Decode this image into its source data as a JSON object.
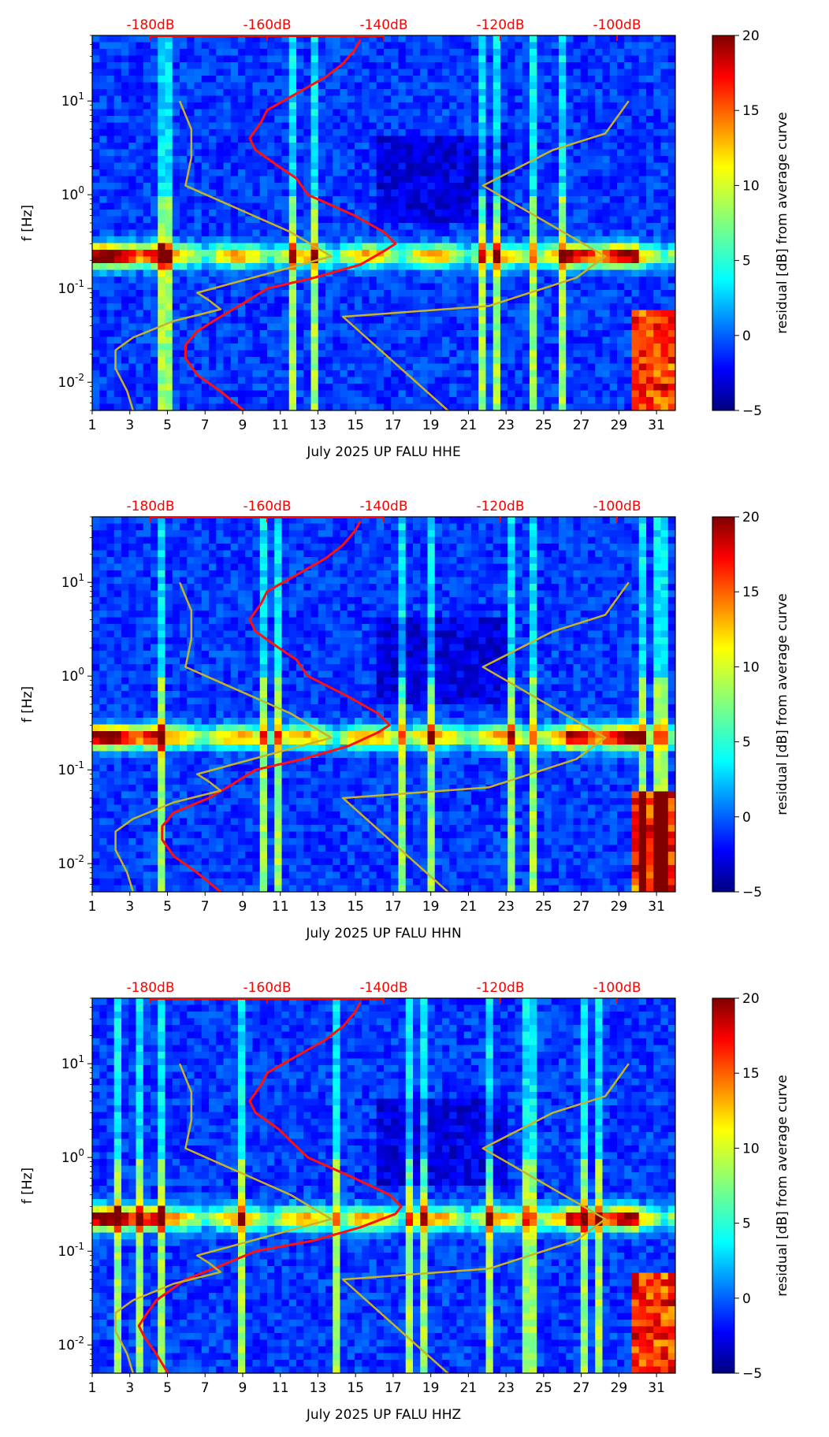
{
  "colors": {
    "noise_curve": "#ff1010",
    "model_curve": "#c8b228",
    "db_axis": "#ff0000",
    "colormap": [
      "#00007f",
      "#0000ff",
      "#007fff",
      "#00ffff",
      "#7fff7f",
      "#ffff00",
      "#ff7f00",
      "#ff0000",
      "#7f0000"
    ]
  },
  "chart_data": [
    {
      "type": "heatmap",
      "title": "",
      "xlabel": "July 2025 UP FALU  HHE",
      "ylabel": "f [Hz]",
      "x_ticks": [
        "1",
        "3",
        "5",
        "7",
        "9",
        "11",
        "13",
        "15",
        "17",
        "19",
        "21",
        "23",
        "25",
        "27",
        "29",
        "31"
      ],
      "x_range": [
        1,
        32
      ],
      "y_scale": "log",
      "y_range": [
        0.005,
        50
      ],
      "y_ticks": [
        "10^-2",
        "10^-1",
        "10^0",
        "10^1"
      ],
      "top_axis": {
        "ticks": [
          "-180dB",
          "-160dB",
          "-140dB",
          "-120dB",
          "-100dB"
        ],
        "values": [
          -180,
          -160,
          -140,
          -120,
          -100
        ],
        "range": [
          -190,
          -90
        ]
      },
      "colorbar": {
        "label": "residual [dB] from average curve",
        "range": [
          -5,
          20
        ],
        "ticks": [
          "−5",
          "0",
          "5",
          "10",
          "15",
          "20"
        ]
      },
      "series": [
        {
          "name": "red noise curve (dB)",
          "freq": [
            0.005,
            0.008,
            0.012,
            0.018,
            0.025,
            0.035,
            0.05,
            0.07,
            0.1,
            0.13,
            0.18,
            0.25,
            0.3,
            0.4,
            0.6,
            1,
            1.5,
            2,
            3,
            4,
            6,
            8,
            12,
            18,
            25,
            35,
            45
          ],
          "db": [
            -164,
            -168,
            -172,
            -174,
            -174,
            -172,
            -168,
            -164,
            -160,
            -152,
            -144,
            -140,
            -138,
            -140,
            -145,
            -153,
            -155,
            -158,
            -162,
            -163,
            -161,
            -160,
            -155,
            -150,
            -147,
            -145,
            -144
          ]
        },
        {
          "name": "model curve (dB)",
          "freq": [
            0.005,
            0.008,
            0.014,
            0.022,
            0.03,
            0.045,
            0.06,
            0.075,
            0.09,
            0.22,
            0.4,
            1.25,
            2.5,
            5,
            10
          ],
          "db": [
            -183,
            -184,
            -186,
            -186,
            -183,
            -176,
            -168,
            -170,
            -172,
            -149,
            -156,
            -174,
            -173,
            -173,
            -175
          ]
        },
        {
          "name": "model curve upper (dB)",
          "freq": [
            0.005,
            0.05,
            0.065,
            0.13,
            0.22,
            1.25,
            3,
            4.5,
            10
          ],
          "db": [
            -129,
            -147,
            -122,
            -107,
            -102,
            -123,
            -111,
            -102,
            -98
          ]
        }
      ]
    },
    {
      "type": "heatmap",
      "title": "",
      "xlabel": "July 2025 UP FALU  HHN",
      "ylabel": "f [Hz]",
      "x_ticks": [
        "1",
        "3",
        "5",
        "7",
        "9",
        "11",
        "13",
        "15",
        "17",
        "19",
        "21",
        "23",
        "25",
        "27",
        "29",
        "31"
      ],
      "x_range": [
        1,
        32
      ],
      "y_scale": "log",
      "y_range": [
        0.005,
        50
      ],
      "y_ticks": [
        "10^-2",
        "10^-1",
        "10^0",
        "10^1"
      ],
      "top_axis": {
        "ticks": [
          "-180dB",
          "-160dB",
          "-140dB",
          "-120dB",
          "-100dB"
        ],
        "values": [
          -180,
          -160,
          -140,
          -120,
          -100
        ],
        "range": [
          -190,
          -90
        ]
      },
      "colorbar": {
        "label": "residual [dB] from average curve",
        "range": [
          -5,
          20
        ],
        "ticks": [
          "−5",
          "0",
          "5",
          "10",
          "15",
          "20"
        ]
      },
      "series": [
        {
          "name": "red noise curve (dB)",
          "freq": [
            0.005,
            0.008,
            0.012,
            0.018,
            0.025,
            0.035,
            0.05,
            0.07,
            0.1,
            0.13,
            0.18,
            0.25,
            0.3,
            0.4,
            0.6,
            1,
            1.5,
            2,
            3,
            4,
            6,
            8,
            12,
            18,
            25,
            35,
            45
          ],
          "db": [
            -168,
            -172,
            -176,
            -178,
            -178,
            -176,
            -170,
            -166,
            -162,
            -154,
            -146,
            -141,
            -139,
            -141,
            -146,
            -153,
            -155,
            -158,
            -162,
            -163,
            -161,
            -160,
            -155,
            -150,
            -147,
            -145,
            -144
          ]
        },
        {
          "name": "model curve (dB)",
          "freq": [
            0.005,
            0.008,
            0.014,
            0.022,
            0.03,
            0.045,
            0.06,
            0.075,
            0.09,
            0.22,
            0.4,
            1.25,
            2.5,
            5,
            10
          ],
          "db": [
            -183,
            -184,
            -186,
            -186,
            -183,
            -176,
            -168,
            -170,
            -172,
            -149,
            -156,
            -174,
            -173,
            -173,
            -175
          ]
        },
        {
          "name": "model curve upper (dB)",
          "freq": [
            0.005,
            0.05,
            0.065,
            0.13,
            0.22,
            1.25,
            3,
            4.5,
            10
          ],
          "db": [
            -129,
            -147,
            -122,
            -107,
            -102,
            -123,
            -111,
            -102,
            -98
          ]
        }
      ]
    },
    {
      "type": "heatmap",
      "title": "",
      "xlabel": "July 2025 UP FALU  HHZ",
      "ylabel": "f [Hz]",
      "x_ticks": [
        "1",
        "3",
        "5",
        "7",
        "9",
        "11",
        "13",
        "15",
        "17",
        "19",
        "21",
        "23",
        "25",
        "27",
        "29",
        "31"
      ],
      "x_range": [
        1,
        32
      ],
      "y_scale": "log",
      "y_range": [
        0.005,
        50
      ],
      "y_ticks": [
        "10^-2",
        "10^-1",
        "10^0",
        "10^1"
      ],
      "top_axis": {
        "ticks": [
          "-180dB",
          "-160dB",
          "-140dB",
          "-120dB",
          "-100dB"
        ],
        "values": [
          -180,
          -160,
          -140,
          -120,
          -100
        ],
        "range": [
          -190,
          -90
        ]
      },
      "colorbar": {
        "label": "residual [dB] from average curve",
        "range": [
          -5,
          20
        ],
        "ticks": [
          "−5",
          "0",
          "5",
          "10",
          "15",
          "20"
        ]
      },
      "series": [
        {
          "name": "red noise curve (dB)",
          "freq": [
            0.005,
            0.008,
            0.012,
            0.016,
            0.02,
            0.03,
            0.05,
            0.07,
            0.1,
            0.13,
            0.18,
            0.25,
            0.3,
            0.4,
            0.6,
            1,
            1.5,
            2,
            3,
            4,
            6,
            8,
            12,
            18,
            25,
            35,
            45
          ],
          "db": [
            -177,
            -179,
            -181,
            -182,
            -181,
            -179,
            -174,
            -168,
            -162,
            -152,
            -144,
            -138,
            -137,
            -139,
            -145,
            -153,
            -156,
            -158,
            -162,
            -163,
            -161,
            -160,
            -155,
            -150,
            -147,
            -145,
            -144
          ]
        },
        {
          "name": "model curve (dB)",
          "freq": [
            0.005,
            0.008,
            0.014,
            0.022,
            0.03,
            0.045,
            0.06,
            0.075,
            0.09,
            0.22,
            0.4,
            1.25,
            2.5,
            5,
            10
          ],
          "db": [
            -183,
            -184,
            -186,
            -186,
            -183,
            -176,
            -168,
            -170,
            -172,
            -149,
            -156,
            -174,
            -173,
            -173,
            -175
          ]
        },
        {
          "name": "model curve upper (dB)",
          "freq": [
            0.005,
            0.05,
            0.065,
            0.13,
            0.22,
            1.25,
            3,
            4.5,
            10
          ],
          "db": [
            -129,
            -147,
            -122,
            -107,
            -102,
            -123,
            -111,
            -102,
            -98
          ]
        }
      ]
    }
  ]
}
